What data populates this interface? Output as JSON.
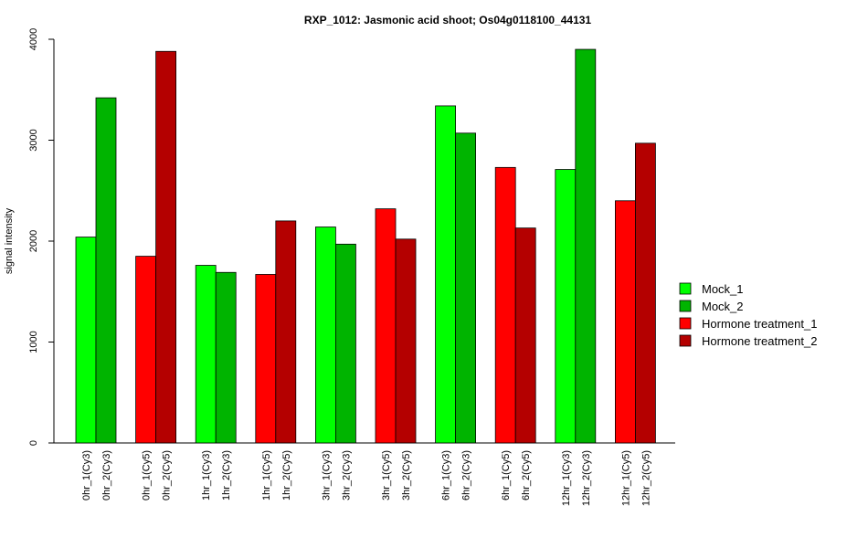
{
  "chart_data": {
    "type": "bar",
    "title": "RXP_1012: Jasmonic acid shoot; Os04g0118100_44131",
    "xlabel": "",
    "ylabel": "signal intensity",
    "ylim": [
      0,
      4000
    ],
    "yticks": [
      "0",
      "1000",
      "2000",
      "3000",
      "4000"
    ],
    "grid": false,
    "legend_position": "right",
    "legend": [
      {
        "name": "Mock_1",
        "color": "#00ff00"
      },
      {
        "name": "Mock_2",
        "color": "#00b400"
      },
      {
        "name": "Hormone treatment_1",
        "color": "#ff0000"
      },
      {
        "name": "Hormone treatment_2",
        "color": "#b40000"
      }
    ],
    "groups": [
      {
        "bars": [
          {
            "label": "0hr_1(Cy3)",
            "value": 2040,
            "color": "#00ff00"
          },
          {
            "label": "0hr_2(Cy3)",
            "value": 3420,
            "color": "#00b400"
          }
        ]
      },
      {
        "bars": [
          {
            "label": "0hr_1(Cy5)",
            "value": 1850,
            "color": "#ff0000"
          },
          {
            "label": "0hr_2(Cy5)",
            "value": 3880,
            "color": "#b40000"
          }
        ]
      },
      {
        "bars": [
          {
            "label": "1hr_1(Cy3)",
            "value": 1760,
            "color": "#00ff00"
          },
          {
            "label": "1hr_2(Cy3)",
            "value": 1690,
            "color": "#00b400"
          }
        ]
      },
      {
        "bars": [
          {
            "label": "1hr_1(Cy5)",
            "value": 1670,
            "color": "#ff0000"
          },
          {
            "label": "1hr_2(Cy5)",
            "value": 2200,
            "color": "#b40000"
          }
        ]
      },
      {
        "bars": [
          {
            "label": "3hr_1(Cy3)",
            "value": 2140,
            "color": "#00ff00"
          },
          {
            "label": "3hr_2(Cy3)",
            "value": 1970,
            "color": "#00b400"
          }
        ]
      },
      {
        "bars": [
          {
            "label": "3hr_1(Cy5)",
            "value": 2320,
            "color": "#ff0000"
          },
          {
            "label": "3hr_2(Cy5)",
            "value": 2020,
            "color": "#b40000"
          }
        ]
      },
      {
        "bars": [
          {
            "label": "6hr_1(Cy3)",
            "value": 3340,
            "color": "#00ff00"
          },
          {
            "label": "6hr_2(Cy3)",
            "value": 3070,
            "color": "#00b400"
          }
        ]
      },
      {
        "bars": [
          {
            "label": "6hr_1(Cy5)",
            "value": 2730,
            "color": "#ff0000"
          },
          {
            "label": "6hr_2(Cy5)",
            "value": 2130,
            "color": "#b40000"
          }
        ]
      },
      {
        "bars": [
          {
            "label": "12hr_1(Cy3)",
            "value": 2710,
            "color": "#00ff00"
          },
          {
            "label": "12hr_2(Cy3)",
            "value": 3900,
            "color": "#00b400"
          }
        ]
      },
      {
        "bars": [
          {
            "label": "12hr_1(Cy5)",
            "value": 2400,
            "color": "#ff0000"
          },
          {
            "label": "12hr_2(Cy5)",
            "value": 2970,
            "color": "#b40000"
          }
        ]
      }
    ]
  }
}
